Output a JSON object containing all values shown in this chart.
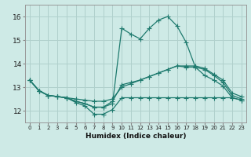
{
  "xlabel": "Humidex (Indice chaleur)",
  "background_color": "#ceeae6",
  "grid_color": "#b0d0cc",
  "line_color": "#1e7a6e",
  "xlim": [
    -0.5,
    23.5
  ],
  "ylim": [
    11.5,
    16.5
  ],
  "yticks": [
    12,
    13,
    14,
    15,
    16
  ],
  "xticks": [
    0,
    1,
    2,
    3,
    4,
    5,
    6,
    7,
    8,
    9,
    10,
    11,
    12,
    13,
    14,
    15,
    16,
    17,
    18,
    19,
    20,
    21,
    22,
    23
  ],
  "series_spike_x": [
    0,
    1,
    2,
    3,
    4,
    5,
    6,
    7,
    8,
    9,
    10,
    11,
    12,
    13,
    14,
    15,
    16,
    17,
    18,
    19,
    20,
    21,
    22,
    23
  ],
  "series_spike_y": [
    13.3,
    12.85,
    12.65,
    12.6,
    12.55,
    12.4,
    12.3,
    12.15,
    12.15,
    12.3,
    15.5,
    15.25,
    15.05,
    15.5,
    15.85,
    16.0,
    15.6,
    14.9,
    13.85,
    13.5,
    13.3,
    13.05,
    12.55,
    12.45
  ],
  "series_flat1_x": [
    0,
    1,
    2,
    3,
    4,
    5,
    6,
    7,
    8,
    9,
    10,
    11,
    12,
    13,
    14,
    15,
    16,
    17,
    18,
    19,
    20,
    21,
    22,
    23
  ],
  "series_flat1_y": [
    13.3,
    12.85,
    12.65,
    12.6,
    12.55,
    12.4,
    12.3,
    12.15,
    12.15,
    12.4,
    13.1,
    13.2,
    13.3,
    13.45,
    13.6,
    13.75,
    13.9,
    13.85,
    13.85,
    13.75,
    13.5,
    13.2,
    12.65,
    12.5
  ],
  "series_flat2_x": [
    0,
    1,
    2,
    3,
    4,
    5,
    6,
    7,
    8,
    9,
    10,
    11,
    12,
    13,
    14,
    15,
    16,
    17,
    18,
    19,
    20,
    21,
    22,
    23
  ],
  "series_flat2_y": [
    13.3,
    12.85,
    12.65,
    12.6,
    12.55,
    12.5,
    12.45,
    12.4,
    12.4,
    12.5,
    13.0,
    13.15,
    13.3,
    13.45,
    13.6,
    13.75,
    13.9,
    13.9,
    13.9,
    13.8,
    13.55,
    13.3,
    12.75,
    12.6
  ],
  "series_bottom_x": [
    0,
    1,
    2,
    3,
    4,
    5,
    6,
    7,
    8,
    9,
    10,
    11,
    12,
    13,
    14,
    15,
    16,
    17,
    18,
    19,
    20,
    21,
    22,
    23
  ],
  "series_bottom_y": [
    13.3,
    12.85,
    12.65,
    12.6,
    12.55,
    12.35,
    12.2,
    11.85,
    11.85,
    12.05,
    12.55,
    12.55,
    12.55,
    12.55,
    12.55,
    12.55,
    12.55,
    12.55,
    12.55,
    12.55,
    12.55,
    12.55,
    12.55,
    12.45
  ]
}
